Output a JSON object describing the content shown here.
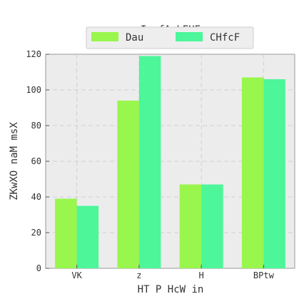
{
  "chart_data": {
    "type": "bar",
    "title": "Im fAcLEHE",
    "xlabel": "HT P  HcW in",
    "ylabel": "ZKwXO naM msX",
    "categories": [
      "VK",
      "z",
      "H",
      "BPtw"
    ],
    "series": [
      {
        "name": "Dau",
        "values": [
          39,
          94,
          47,
          107
        ],
        "color": "#99f64c"
      },
      {
        "name": "CHfcF",
        "values": [
          35,
          119,
          47,
          106
        ],
        "color": "#4cf699"
      }
    ],
    "ylim": [
      0,
      120
    ],
    "yticks": [
      0,
      20,
      40,
      60,
      80,
      100,
      120
    ],
    "grid": true,
    "legend": "top-center"
  }
}
